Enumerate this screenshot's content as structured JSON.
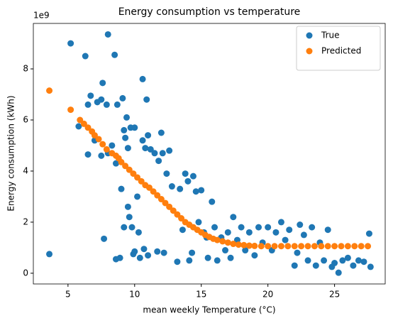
{
  "chart_data": {
    "type": "scatter",
    "title": "Energy consumption vs temperature",
    "x_label": "mean weekly Temperature (°C)",
    "y_label": "Energy consumption (kWh)",
    "y_offset_label": "1e9",
    "xlim": [
      2.4,
      28.8
    ],
    "ylim": [
      -0.42,
      9.78
    ],
    "xticks": [
      5,
      10,
      15,
      20,
      25
    ],
    "yticks": [
      0,
      2,
      4,
      6,
      8
    ],
    "grid": false,
    "legend": "upper right",
    "series": [
      {
        "name": "True",
        "color": "#1f77b4",
        "x": [
          3.6,
          5.2,
          6.3,
          8.0,
          8.5,
          5.8,
          6.5,
          6.7,
          6.5,
          7.0,
          7.2,
          7.5,
          7.6,
          7.7,
          7.9,
          7.5,
          8.0,
          8.3,
          8.6,
          8.7,
          8.6,
          8.9,
          9.0,
          9.1,
          9.2,
          9.2,
          9.3,
          9.4,
          9.5,
          9.5,
          9.6,
          9.7,
          9.8,
          9.9,
          10.0,
          10.0,
          10.2,
          10.3,
          10.4,
          10.6,
          10.6,
          10.7,
          10.8,
          10.9,
          11.0,
          11.0,
          11.2,
          11.5,
          11.7,
          11.8,
          12.0,
          12.1,
          12.2,
          12.4,
          12.6,
          12.8,
          13.2,
          13.4,
          13.6,
          13.8,
          14.0,
          14.1,
          14.3,
          14.4,
          14.6,
          14.8,
          15.0,
          15.2,
          15.4,
          15.5,
          15.8,
          16.0,
          16.2,
          16.5,
          16.8,
          17.0,
          17.2,
          17.4,
          17.7,
          18.0,
          18.3,
          18.6,
          19.0,
          19.3,
          19.6,
          20.0,
          20.3,
          20.6,
          21.0,
          21.3,
          21.6,
          22.0,
          22.2,
          22.4,
          22.7,
          23.0,
          23.3,
          23.6,
          23.9,
          24.2,
          24.5,
          24.8,
          25.0,
          25.3,
          25.6,
          26.0,
          26.4,
          26.8,
          27.2,
          27.6,
          27.7
        ],
        "values": [
          0.75,
          9.0,
          8.5,
          9.35,
          8.55,
          5.75,
          4.65,
          6.95,
          6.6,
          5.2,
          6.7,
          6.8,
          7.45,
          1.35,
          6.6,
          4.6,
          4.7,
          5.0,
          4.3,
          6.6,
          0.55,
          0.6,
          3.3,
          6.85,
          1.8,
          5.6,
          5.3,
          6.1,
          2.6,
          4.9,
          2.2,
          5.7,
          1.8,
          0.75,
          0.85,
          5.7,
          3.0,
          1.6,
          0.6,
          7.6,
          5.2,
          0.95,
          4.9,
          6.8,
          5.4,
          0.7,
          4.85,
          4.7,
          0.85,
          4.4,
          5.5,
          4.7,
          0.8,
          3.9,
          4.8,
          3.4,
          0.45,
          3.3,
          1.7,
          3.9,
          3.6,
          0.5,
          0.8,
          3.8,
          3.2,
          2.0,
          3.25,
          1.6,
          1.4,
          0.6,
          2.8,
          1.8,
          0.5,
          1.4,
          0.9,
          1.6,
          0.6,
          2.2,
          1.3,
          1.8,
          0.9,
          1.6,
          0.7,
          1.8,
          1.2,
          1.8,
          0.9,
          1.6,
          2.0,
          1.3,
          1.7,
          0.3,
          0.8,
          1.9,
          1.5,
          0.5,
          1.8,
          0.3,
          1.2,
          0.5,
          1.7,
          0.25,
          0.4,
          0.02,
          0.5,
          0.6,
          0.3,
          0.5,
          0.45,
          1.55,
          0.25
        ]
      },
      {
        "name": "Predicted",
        "color": "#ff7f0e",
        "x": [
          3.6,
          5.2,
          5.9,
          6.2,
          6.5,
          6.8,
          7.0,
          7.3,
          7.6,
          7.9,
          8.3,
          8.6,
          8.8,
          9.0,
          9.3,
          9.6,
          9.9,
          10.2,
          10.5,
          10.8,
          11.1,
          11.4,
          11.7,
          12.0,
          12.3,
          12.6,
          12.9,
          13.2,
          13.5,
          13.8,
          14.1,
          14.4,
          14.7,
          15.0,
          15.3,
          15.6,
          15.9,
          16.2,
          16.6,
          17.0,
          17.4,
          17.8,
          18.2,
          18.6,
          19.0,
          19.5,
          20.0,
          20.5,
          21.0,
          21.5,
          22.0,
          22.5,
          23.0,
          23.5,
          24.0,
          24.5,
          25.0,
          25.5,
          26.0,
          26.5,
          27.0,
          27.5
        ],
        "values": [
          7.15,
          6.4,
          6.0,
          5.85,
          5.7,
          5.55,
          5.4,
          5.25,
          5.05,
          4.85,
          4.7,
          4.6,
          4.5,
          4.35,
          4.2,
          4.05,
          3.9,
          3.75,
          3.6,
          3.45,
          3.35,
          3.2,
          3.05,
          2.9,
          2.75,
          2.6,
          2.45,
          2.3,
          2.15,
          2.0,
          1.9,
          1.8,
          1.7,
          1.6,
          1.5,
          1.42,
          1.35,
          1.3,
          1.25,
          1.2,
          1.15,
          1.12,
          1.1,
          1.08,
          1.07,
          1.06,
          1.06,
          1.06,
          1.06,
          1.06,
          1.06,
          1.06,
          1.06,
          1.06,
          1.06,
          1.06,
          1.06,
          1.06,
          1.06,
          1.06,
          1.06,
          1.06
        ]
      }
    ]
  }
}
